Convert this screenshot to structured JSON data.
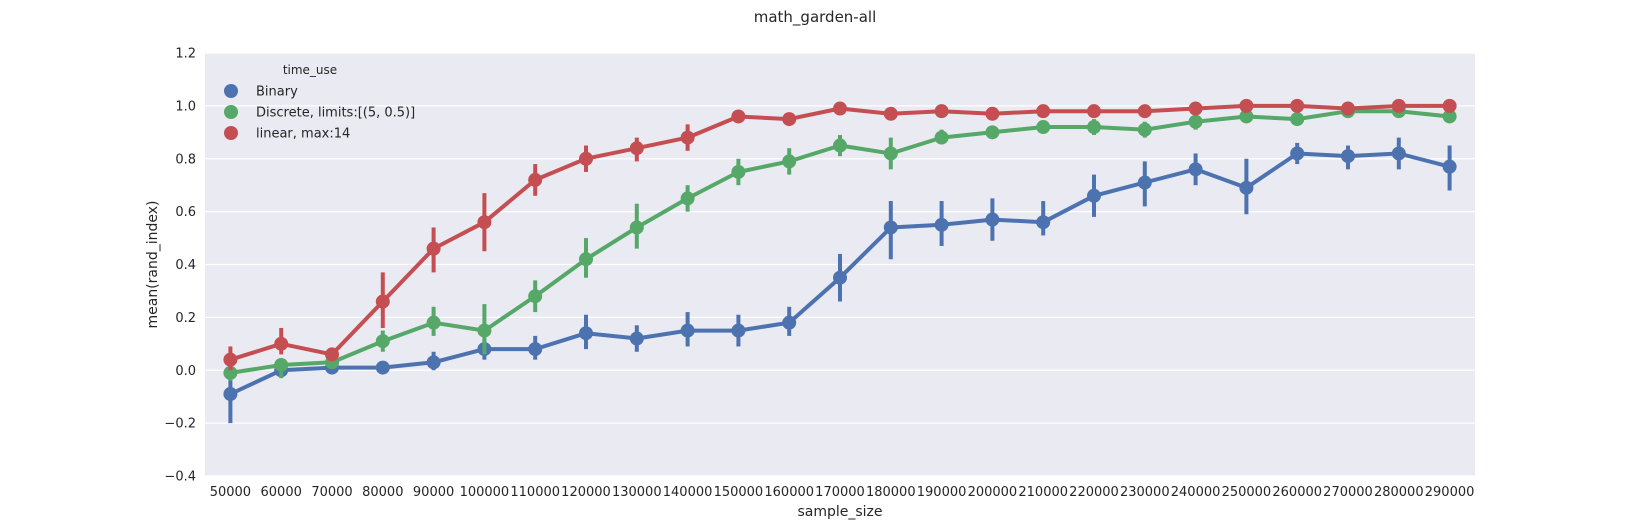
{
  "chart_data": {
    "type": "line",
    "title": "math_garden-all",
    "xlabel": "sample_size",
    "ylabel": "mean(rand_index)",
    "ylim": [
      -0.4,
      1.2
    ],
    "yticks": [
      -0.4,
      -0.2,
      0.0,
      0.2,
      0.4,
      0.6,
      0.8,
      1.0,
      1.2
    ],
    "ytick_labels": [
      "−0.4",
      "−0.2",
      "0.0",
      "0.2",
      "0.4",
      "0.6",
      "0.8",
      "1.0",
      "1.2"
    ],
    "categories": [
      "50000",
      "60000",
      "70000",
      "80000",
      "90000",
      "100000",
      "110000",
      "120000",
      "130000",
      "140000",
      "150000",
      "160000",
      "170000",
      "180000",
      "190000",
      "200000",
      "210000",
      "220000",
      "230000",
      "240000",
      "250000",
      "260000",
      "270000",
      "280000",
      "290000"
    ],
    "grid": true,
    "legend": {
      "title": "time_use",
      "placement": "top-left"
    },
    "series": [
      {
        "name": "Binary",
        "color": "#4c72b0",
        "values": [
          -0.09,
          0.0,
          0.01,
          0.01,
          0.03,
          0.08,
          0.08,
          0.14,
          0.12,
          0.15,
          0.15,
          0.18,
          0.35,
          0.54,
          0.55,
          0.57,
          0.56,
          0.66,
          0.71,
          0.76,
          0.69,
          0.82,
          0.81,
          0.82,
          0.77
        ],
        "err_low": [
          -0.2,
          -0.02,
          0.0,
          -0.01,
          0.0,
          0.04,
          0.04,
          0.08,
          0.07,
          0.09,
          0.09,
          0.13,
          0.26,
          0.42,
          0.47,
          0.49,
          0.51,
          0.58,
          0.62,
          0.7,
          0.59,
          0.78,
          0.76,
          0.76,
          0.68
        ],
        "err_high": [
          0.01,
          0.02,
          0.03,
          0.03,
          0.07,
          0.12,
          0.13,
          0.21,
          0.17,
          0.22,
          0.21,
          0.24,
          0.44,
          0.64,
          0.64,
          0.65,
          0.64,
          0.74,
          0.79,
          0.82,
          0.8,
          0.86,
          0.85,
          0.88,
          0.85
        ]
      },
      {
        "name": "Discrete, limits:[(5, 0.5)]",
        "color": "#55a868",
        "values": [
          -0.01,
          0.02,
          0.03,
          0.11,
          0.18,
          0.15,
          0.28,
          0.42,
          0.54,
          0.65,
          0.75,
          0.79,
          0.85,
          0.82,
          0.88,
          0.9,
          0.92,
          0.92,
          0.91,
          0.94,
          0.96,
          0.95,
          0.98,
          0.98,
          0.96
        ],
        "err_low": [
          -0.04,
          -0.03,
          0.01,
          0.07,
          0.13,
          0.06,
          0.22,
          0.35,
          0.46,
          0.6,
          0.7,
          0.74,
          0.81,
          0.76,
          0.86,
          0.89,
          0.9,
          0.89,
          0.88,
          0.91,
          0.94,
          0.93,
          0.96,
          0.96,
          0.94
        ],
        "err_high": [
          0.02,
          0.04,
          0.05,
          0.15,
          0.24,
          0.25,
          0.34,
          0.5,
          0.63,
          0.7,
          0.8,
          0.84,
          0.89,
          0.88,
          0.91,
          0.91,
          0.94,
          0.95,
          0.94,
          0.97,
          0.98,
          0.97,
          0.99,
          0.99,
          0.98
        ]
      },
      {
        "name": "linear, max:14",
        "color": "#c44e52",
        "values": [
          0.04,
          0.1,
          0.06,
          0.26,
          0.46,
          0.56,
          0.72,
          0.8,
          0.84,
          0.88,
          0.96,
          0.95,
          0.99,
          0.97,
          0.98,
          0.97,
          0.98,
          0.98,
          0.98,
          0.99,
          1.0,
          1.0,
          0.99,
          1.0,
          1.0
        ],
        "err_low": [
          0.0,
          0.06,
          0.05,
          0.16,
          0.37,
          0.45,
          0.66,
          0.75,
          0.79,
          0.83,
          0.95,
          0.93,
          0.98,
          0.96,
          0.97,
          0.96,
          0.97,
          0.97,
          0.97,
          0.98,
          0.99,
          0.99,
          0.98,
          0.99,
          0.99
        ],
        "err_high": [
          0.09,
          0.16,
          0.08,
          0.37,
          0.54,
          0.67,
          0.78,
          0.85,
          0.88,
          0.93,
          0.97,
          0.96,
          1.0,
          0.99,
          0.99,
          0.98,
          0.99,
          0.99,
          0.99,
          1.0,
          1.0,
          1.0,
          1.0,
          1.0,
          1.0
        ]
      }
    ]
  }
}
